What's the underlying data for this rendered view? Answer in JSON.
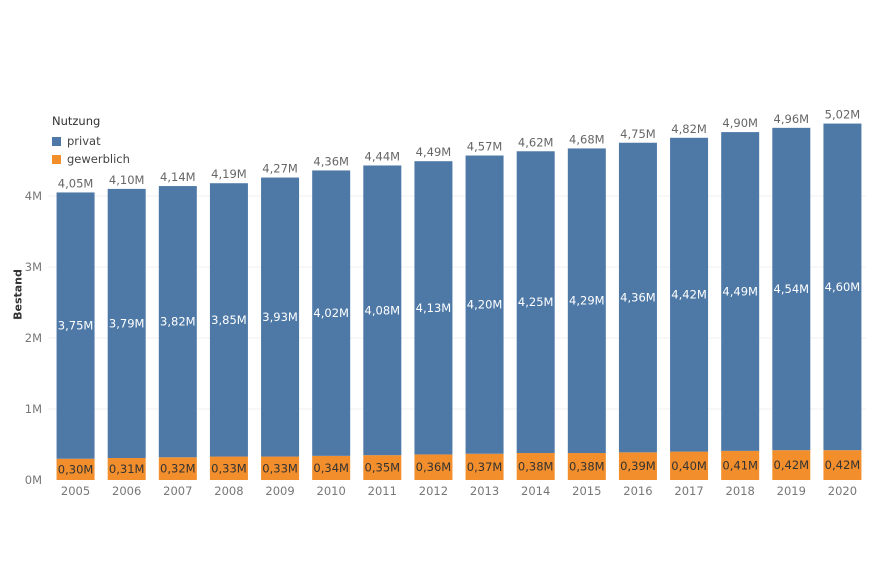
{
  "legend": {
    "title": "Nutzung",
    "items": [
      {
        "label": "privat",
        "color": "#4e79a7"
      },
      {
        "label": "gewerblich",
        "color": "#f28e2b"
      }
    ]
  },
  "chart_data": {
    "type": "bar",
    "stacked": true,
    "title": "",
    "xlabel": "",
    "ylabel": "Bestand",
    "ylim": [
      0,
      5100000
    ],
    "yticks": [
      {
        "value": 0,
        "label": "0M"
      },
      {
        "value": 1000000,
        "label": "1M"
      },
      {
        "value": 2000000,
        "label": "2M"
      },
      {
        "value": 3000000,
        "label": "3M"
      },
      {
        "value": 4000000,
        "label": "4M"
      }
    ],
    "categories": [
      "2005",
      "2006",
      "2007",
      "2008",
      "2009",
      "2010",
      "2011",
      "2012",
      "2013",
      "2014",
      "2015",
      "2016",
      "2017",
      "2018",
      "2019",
      "2020"
    ],
    "series": [
      {
        "name": "gewerblich",
        "color": "#f28e2b",
        "values": [
          300000,
          310000,
          320000,
          330000,
          330000,
          340000,
          350000,
          360000,
          370000,
          380000,
          380000,
          390000,
          400000,
          410000,
          420000,
          420000
        ],
        "labels": [
          "0,30M",
          "0,31M",
          "0,32M",
          "0,33M",
          "0,33M",
          "0,34M",
          "0,35M",
          "0,36M",
          "0,37M",
          "0,38M",
          "0,38M",
          "0,39M",
          "0,40M",
          "0,41M",
          "0,42M",
          "0,42M"
        ]
      },
      {
        "name": "privat",
        "color": "#4e79a7",
        "values": [
          3750000,
          3790000,
          3820000,
          3850000,
          3930000,
          4020000,
          4080000,
          4130000,
          4200000,
          4250000,
          4290000,
          4360000,
          4420000,
          4490000,
          4540000,
          4600000
        ],
        "labels": [
          "3,75M",
          "3,79M",
          "3,82M",
          "3,85M",
          "3,93M",
          "4,02M",
          "4,08M",
          "4,13M",
          "4,20M",
          "4,25M",
          "4,29M",
          "4,36M",
          "4,42M",
          "4,49M",
          "4,54M",
          "4,60M"
        ]
      }
    ],
    "totals": {
      "values": [
        4050000,
        4100000,
        4140000,
        4190000,
        4270000,
        4360000,
        4440000,
        4490000,
        4570000,
        4620000,
        4680000,
        4750000,
        4820000,
        4900000,
        4960000,
        5020000
      ],
      "labels": [
        "4,05M",
        "4,10M",
        "4,14M",
        "4,19M",
        "4,27M",
        "4,36M",
        "4,44M",
        "4,49M",
        "4,57M",
        "4,62M",
        "4,68M",
        "4,75M",
        "4,82M",
        "4,90M",
        "4,96M",
        "5,02M"
      ]
    },
    "grid": true,
    "legend_position": "top-left"
  }
}
